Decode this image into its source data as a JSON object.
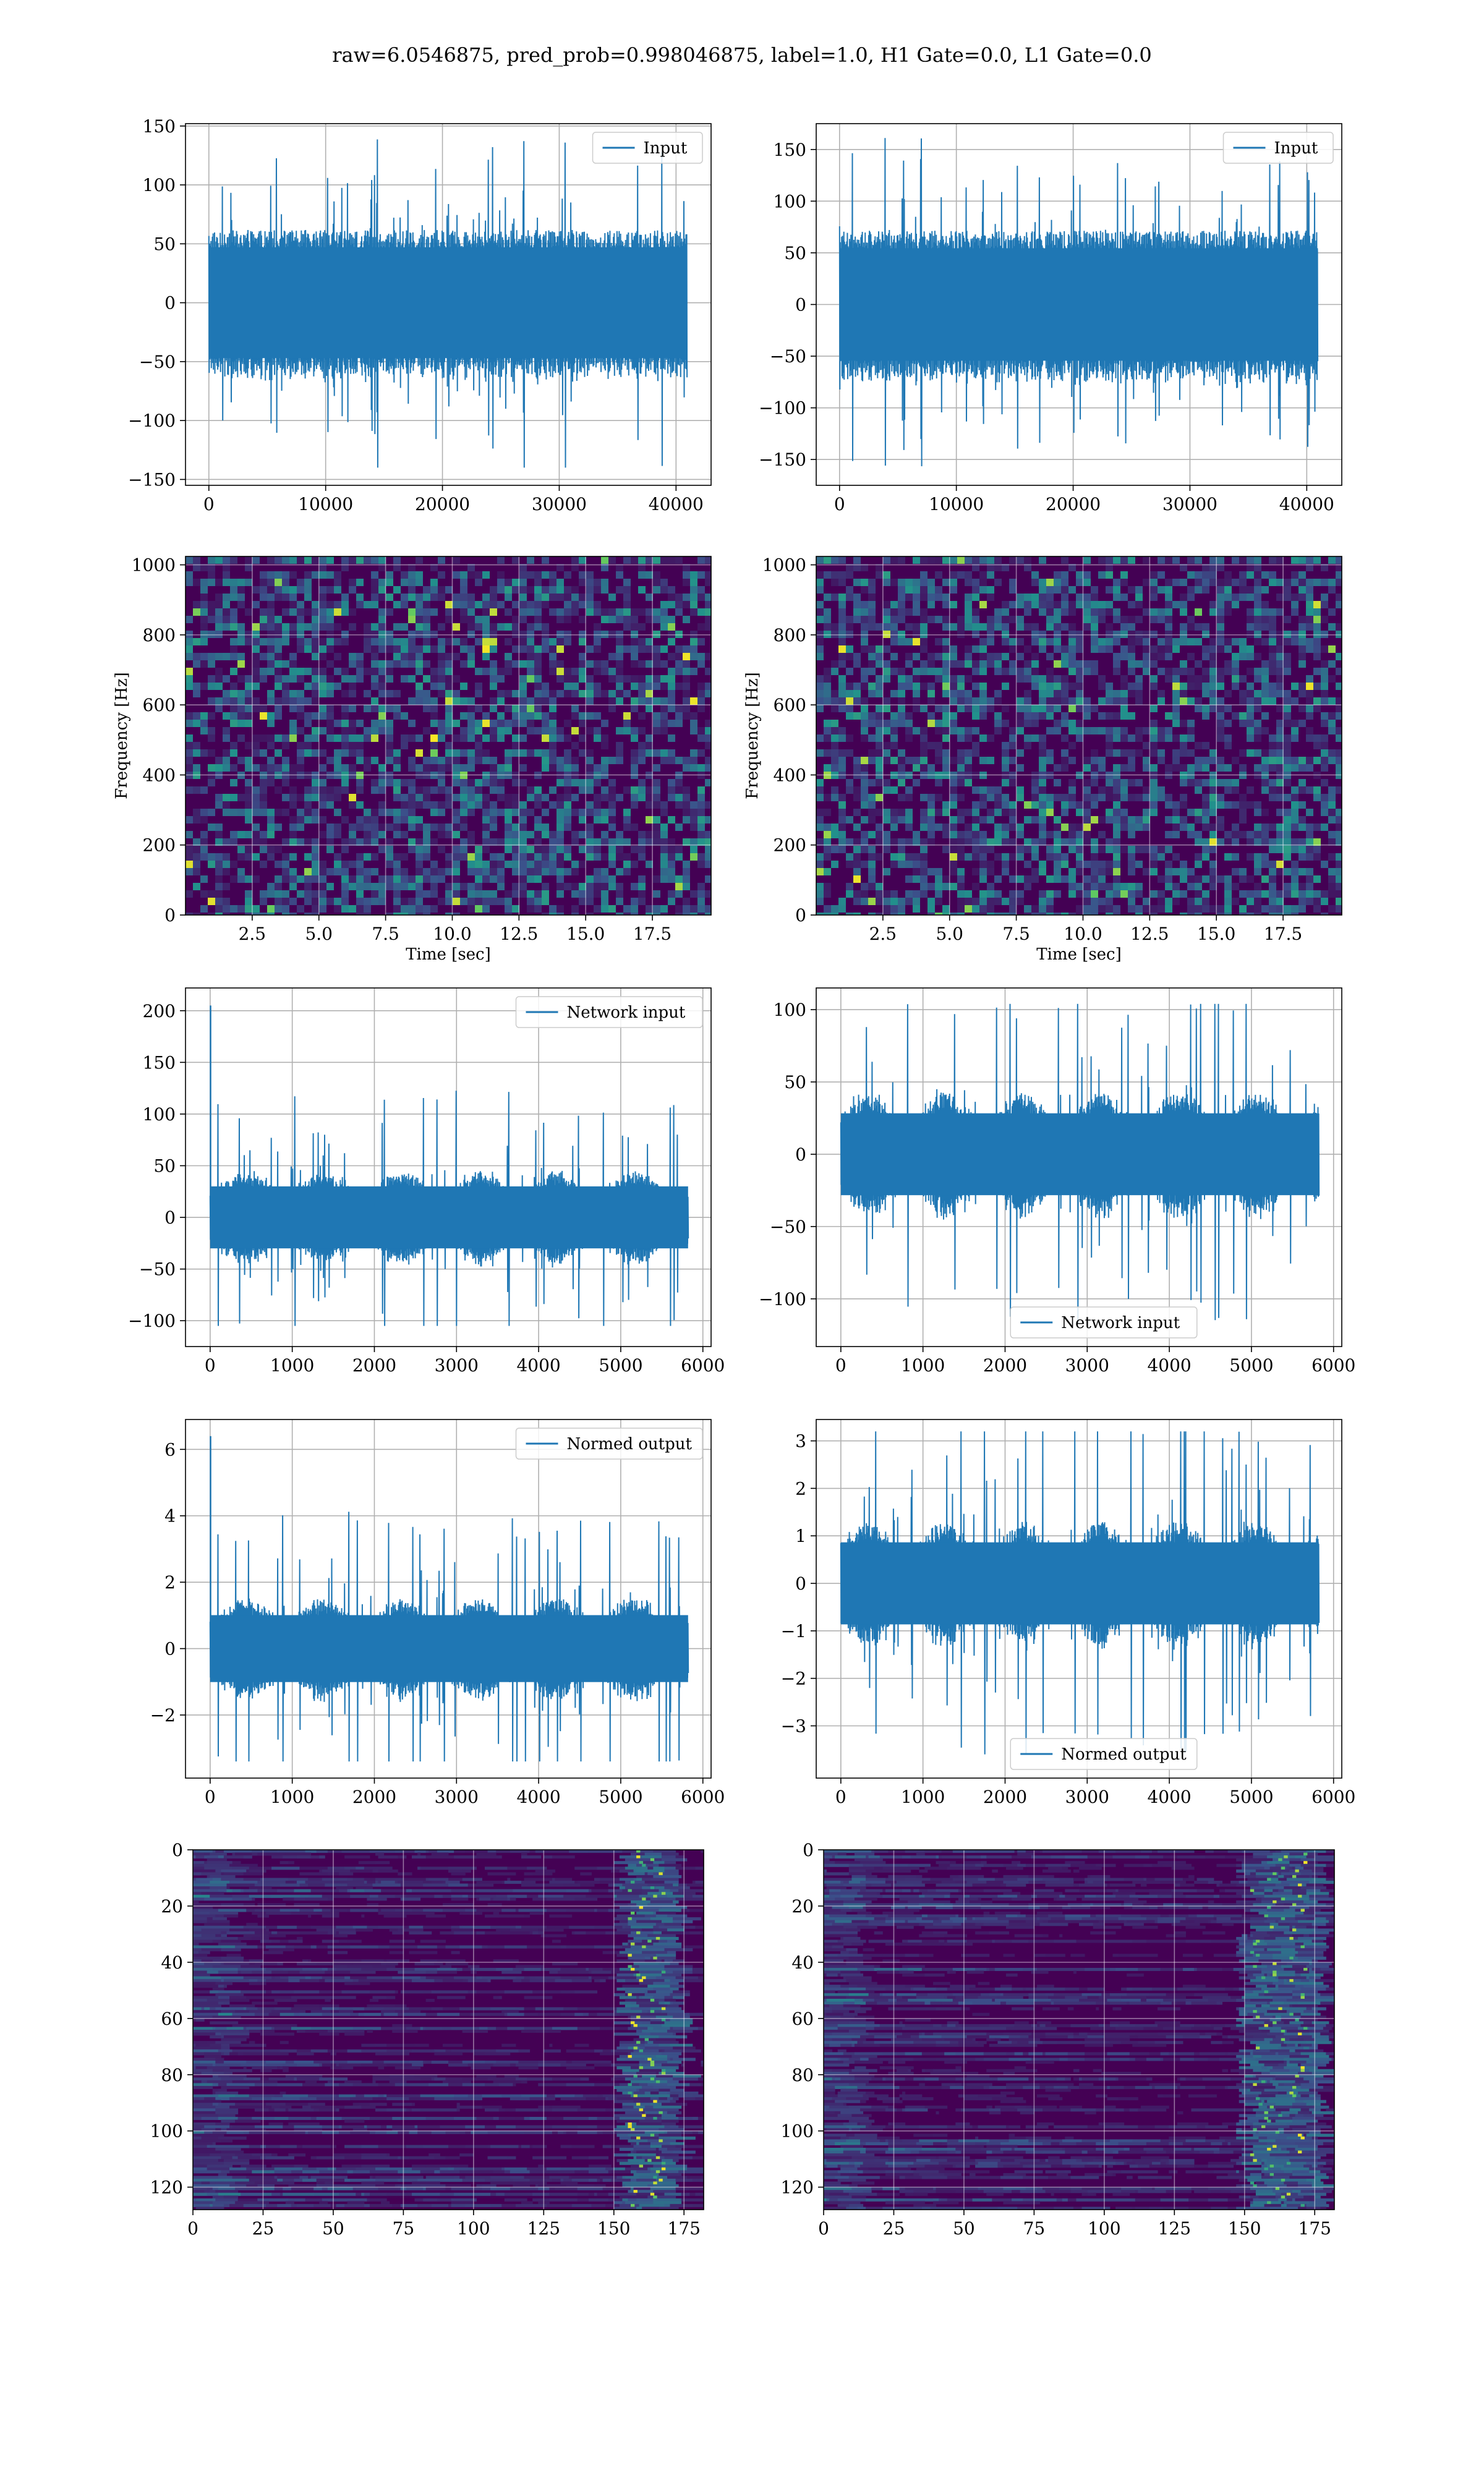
{
  "figure": {
    "title": "raw=6.0546875, pred_prob=0.998046875, label=1.0, H1 Gate=0.0, L1 Gate=0.0"
  },
  "colors": {
    "line": "#1f77b4",
    "grid": "#b0b0b0",
    "viridis_low": "#440154",
    "viridis_high": "#fde725"
  },
  "chart_data": [
    {
      "id": "input-h1",
      "type": "line",
      "legend_loc": "upper-right",
      "series": [
        {
          "name": "Input",
          "x_range": [
            0,
            40960
          ],
          "y_envelope": [
            -140,
            140
          ]
        }
      ],
      "xlim": [
        -2000,
        43000
      ],
      "ylim": [
        -155,
        152
      ],
      "xticks": [
        0,
        10000,
        20000,
        30000,
        40000
      ],
      "yticks": [
        -150,
        -100,
        -50,
        0,
        50,
        100,
        150
      ],
      "xtick_labels": [
        "0",
        "10000",
        "20000",
        "30000",
        "40000"
      ],
      "ytick_labels": [
        "−150",
        "−100",
        "−50",
        "0",
        "50",
        "100",
        "150"
      ],
      "grid": true
    },
    {
      "id": "input-l1",
      "type": "line",
      "legend_loc": "upper-right",
      "series": [
        {
          "name": "Input",
          "x_range": [
            0,
            40960
          ],
          "y_envelope": [
            -158,
            162
          ]
        }
      ],
      "xlim": [
        -2000,
        43000
      ],
      "ylim": [
        -175,
        175
      ],
      "xticks": [
        0,
        10000,
        20000,
        30000,
        40000
      ],
      "yticks": [
        -150,
        -100,
        -50,
        0,
        50,
        100,
        150
      ],
      "xtick_labels": [
        "0",
        "10000",
        "20000",
        "30000",
        "40000"
      ],
      "ytick_labels": [
        "−150",
        "−100",
        "−50",
        "0",
        "50",
        "100",
        "150"
      ],
      "grid": true
    },
    {
      "id": "spec-h1",
      "type": "heatmap",
      "xlim": [
        0,
        19.7
      ],
      "ylim": [
        0,
        1024
      ],
      "xticks": [
        2.5,
        5.0,
        7.5,
        10.0,
        12.5,
        15.0,
        17.5
      ],
      "yticks": [
        0,
        200,
        400,
        600,
        800,
        1000
      ],
      "xtick_labels": [
        "2.5",
        "5.0",
        "7.5",
        "10.0",
        "12.5",
        "15.0",
        "17.5"
      ],
      "ytick_labels": [
        "0",
        "200",
        "400",
        "600",
        "800",
        "1000"
      ],
      "xlabel": "Time [sec]",
      "ylabel": "Frequency [Hz]",
      "grid": true
    },
    {
      "id": "spec-l1",
      "type": "heatmap",
      "xlim": [
        0,
        19.7
      ],
      "ylim": [
        0,
        1024
      ],
      "xticks": [
        2.5,
        5.0,
        7.5,
        10.0,
        12.5,
        15.0,
        17.5
      ],
      "yticks": [
        0,
        200,
        400,
        600,
        800,
        1000
      ],
      "xtick_labels": [
        "2.5",
        "5.0",
        "7.5",
        "10.0",
        "12.5",
        "15.0",
        "17.5"
      ],
      "ytick_labels": [
        "0",
        "200",
        "400",
        "600",
        "800",
        "1000"
      ],
      "xlabel": "Time [sec]",
      "ylabel": "Frequency [Hz]",
      "grid": true
    },
    {
      "id": "netin-h1",
      "type": "line",
      "legend_loc": "upper-right",
      "series": [
        {
          "name": "Network input",
          "x_range": [
            0,
            5820
          ],
          "y_envelope": [
            -105,
            125
          ],
          "spike": [
            5,
            205
          ]
        }
      ],
      "xlim": [
        -300,
        6100
      ],
      "ylim": [
        -125,
        222
      ],
      "xticks": [
        0,
        1000,
        2000,
        3000,
        4000,
        5000,
        6000
      ],
      "yticks": [
        -100,
        -50,
        0,
        50,
        100,
        150,
        200
      ],
      "xtick_labels": [
        "0",
        "1000",
        "2000",
        "3000",
        "4000",
        "5000",
        "6000"
      ],
      "ytick_labels": [
        "−100",
        "−50",
        "0",
        "50",
        "100",
        "150",
        "200"
      ],
      "grid": true
    },
    {
      "id": "netin-l1",
      "type": "line",
      "legend_loc": "lower-center",
      "series": [
        {
          "name": "Network input",
          "x_range": [
            0,
            5820
          ],
          "y_envelope": [
            -118,
            104
          ]
        }
      ],
      "xlim": [
        -300,
        6100
      ],
      "ylim": [
        -133,
        115
      ],
      "xticks": [
        0,
        1000,
        2000,
        3000,
        4000,
        5000,
        6000
      ],
      "yticks": [
        -100,
        -50,
        0,
        50,
        100
      ],
      "xtick_labels": [
        "0",
        "1000",
        "2000",
        "3000",
        "4000",
        "5000",
        "6000"
      ],
      "ytick_labels": [
        "−100",
        "−50",
        "0",
        "50",
        "100"
      ],
      "grid": true
    },
    {
      "id": "normed-h1",
      "type": "line",
      "legend_loc": "upper-right",
      "series": [
        {
          "name": "Normed output",
          "x_range": [
            0,
            5820
          ],
          "y_envelope": [
            -3.4,
            4.2
          ],
          "spike": [
            5,
            6.4
          ]
        }
      ],
      "xlim": [
        -300,
        6100
      ],
      "ylim": [
        -3.9,
        6.9
      ],
      "xticks": [
        0,
        1000,
        2000,
        3000,
        4000,
        5000,
        6000
      ],
      "yticks": [
        -2,
        0,
        2,
        4,
        6
      ],
      "xtick_labels": [
        "0",
        "1000",
        "2000",
        "3000",
        "4000",
        "5000",
        "6000"
      ],
      "ytick_labels": [
        "−2",
        "0",
        "2",
        "4",
        "6"
      ],
      "grid": true
    },
    {
      "id": "normed-l1",
      "type": "line",
      "legend_loc": "lower-center",
      "series": [
        {
          "name": "Normed output",
          "x_range": [
            0,
            5820
          ],
          "y_envelope": [
            -3.6,
            3.2
          ]
        }
      ],
      "xlim": [
        -300,
        6100
      ],
      "ylim": [
        -4.1,
        3.45
      ],
      "xticks": [
        0,
        1000,
        2000,
        3000,
        4000,
        5000,
        6000
      ],
      "yticks": [
        -3,
        -2,
        -1,
        0,
        1,
        2,
        3
      ],
      "xtick_labels": [
        "0",
        "1000",
        "2000",
        "3000",
        "4000",
        "5000",
        "6000"
      ],
      "ytick_labels": [
        "−3",
        "−2",
        "−1",
        "0",
        "1",
        "2",
        "3"
      ],
      "grid": true
    },
    {
      "id": "feat-h1",
      "type": "heatmap",
      "y_inverted": true,
      "xlim": [
        0,
        182
      ],
      "ylim": [
        0,
        128
      ],
      "xticks": [
        0,
        25,
        50,
        75,
        100,
        125,
        150,
        175
      ],
      "yticks": [
        0,
        20,
        40,
        60,
        80,
        100,
        120
      ],
      "xtick_labels": [
        "0",
        "25",
        "50",
        "75",
        "100",
        "125",
        "150",
        "175"
      ],
      "ytick_labels": [
        "0",
        "20",
        "40",
        "60",
        "80",
        "100",
        "120"
      ],
      "hot_band_x": [
        155,
        168
      ],
      "grid": true
    },
    {
      "id": "feat-l1",
      "type": "heatmap",
      "y_inverted": true,
      "xlim": [
        0,
        182
      ],
      "ylim": [
        0,
        128
      ],
      "xticks": [
        0,
        25,
        50,
        75,
        100,
        125,
        150,
        175
      ],
      "yticks": [
        0,
        20,
        40,
        60,
        80,
        100,
        120
      ],
      "xtick_labels": [
        "0",
        "25",
        "50",
        "75",
        "100",
        "125",
        "150",
        "175"
      ],
      "ytick_labels": [
        "0",
        "20",
        "40",
        "60",
        "80",
        "100",
        "120"
      ],
      "hot_band_x": [
        152,
        172
      ],
      "grid": true
    }
  ]
}
